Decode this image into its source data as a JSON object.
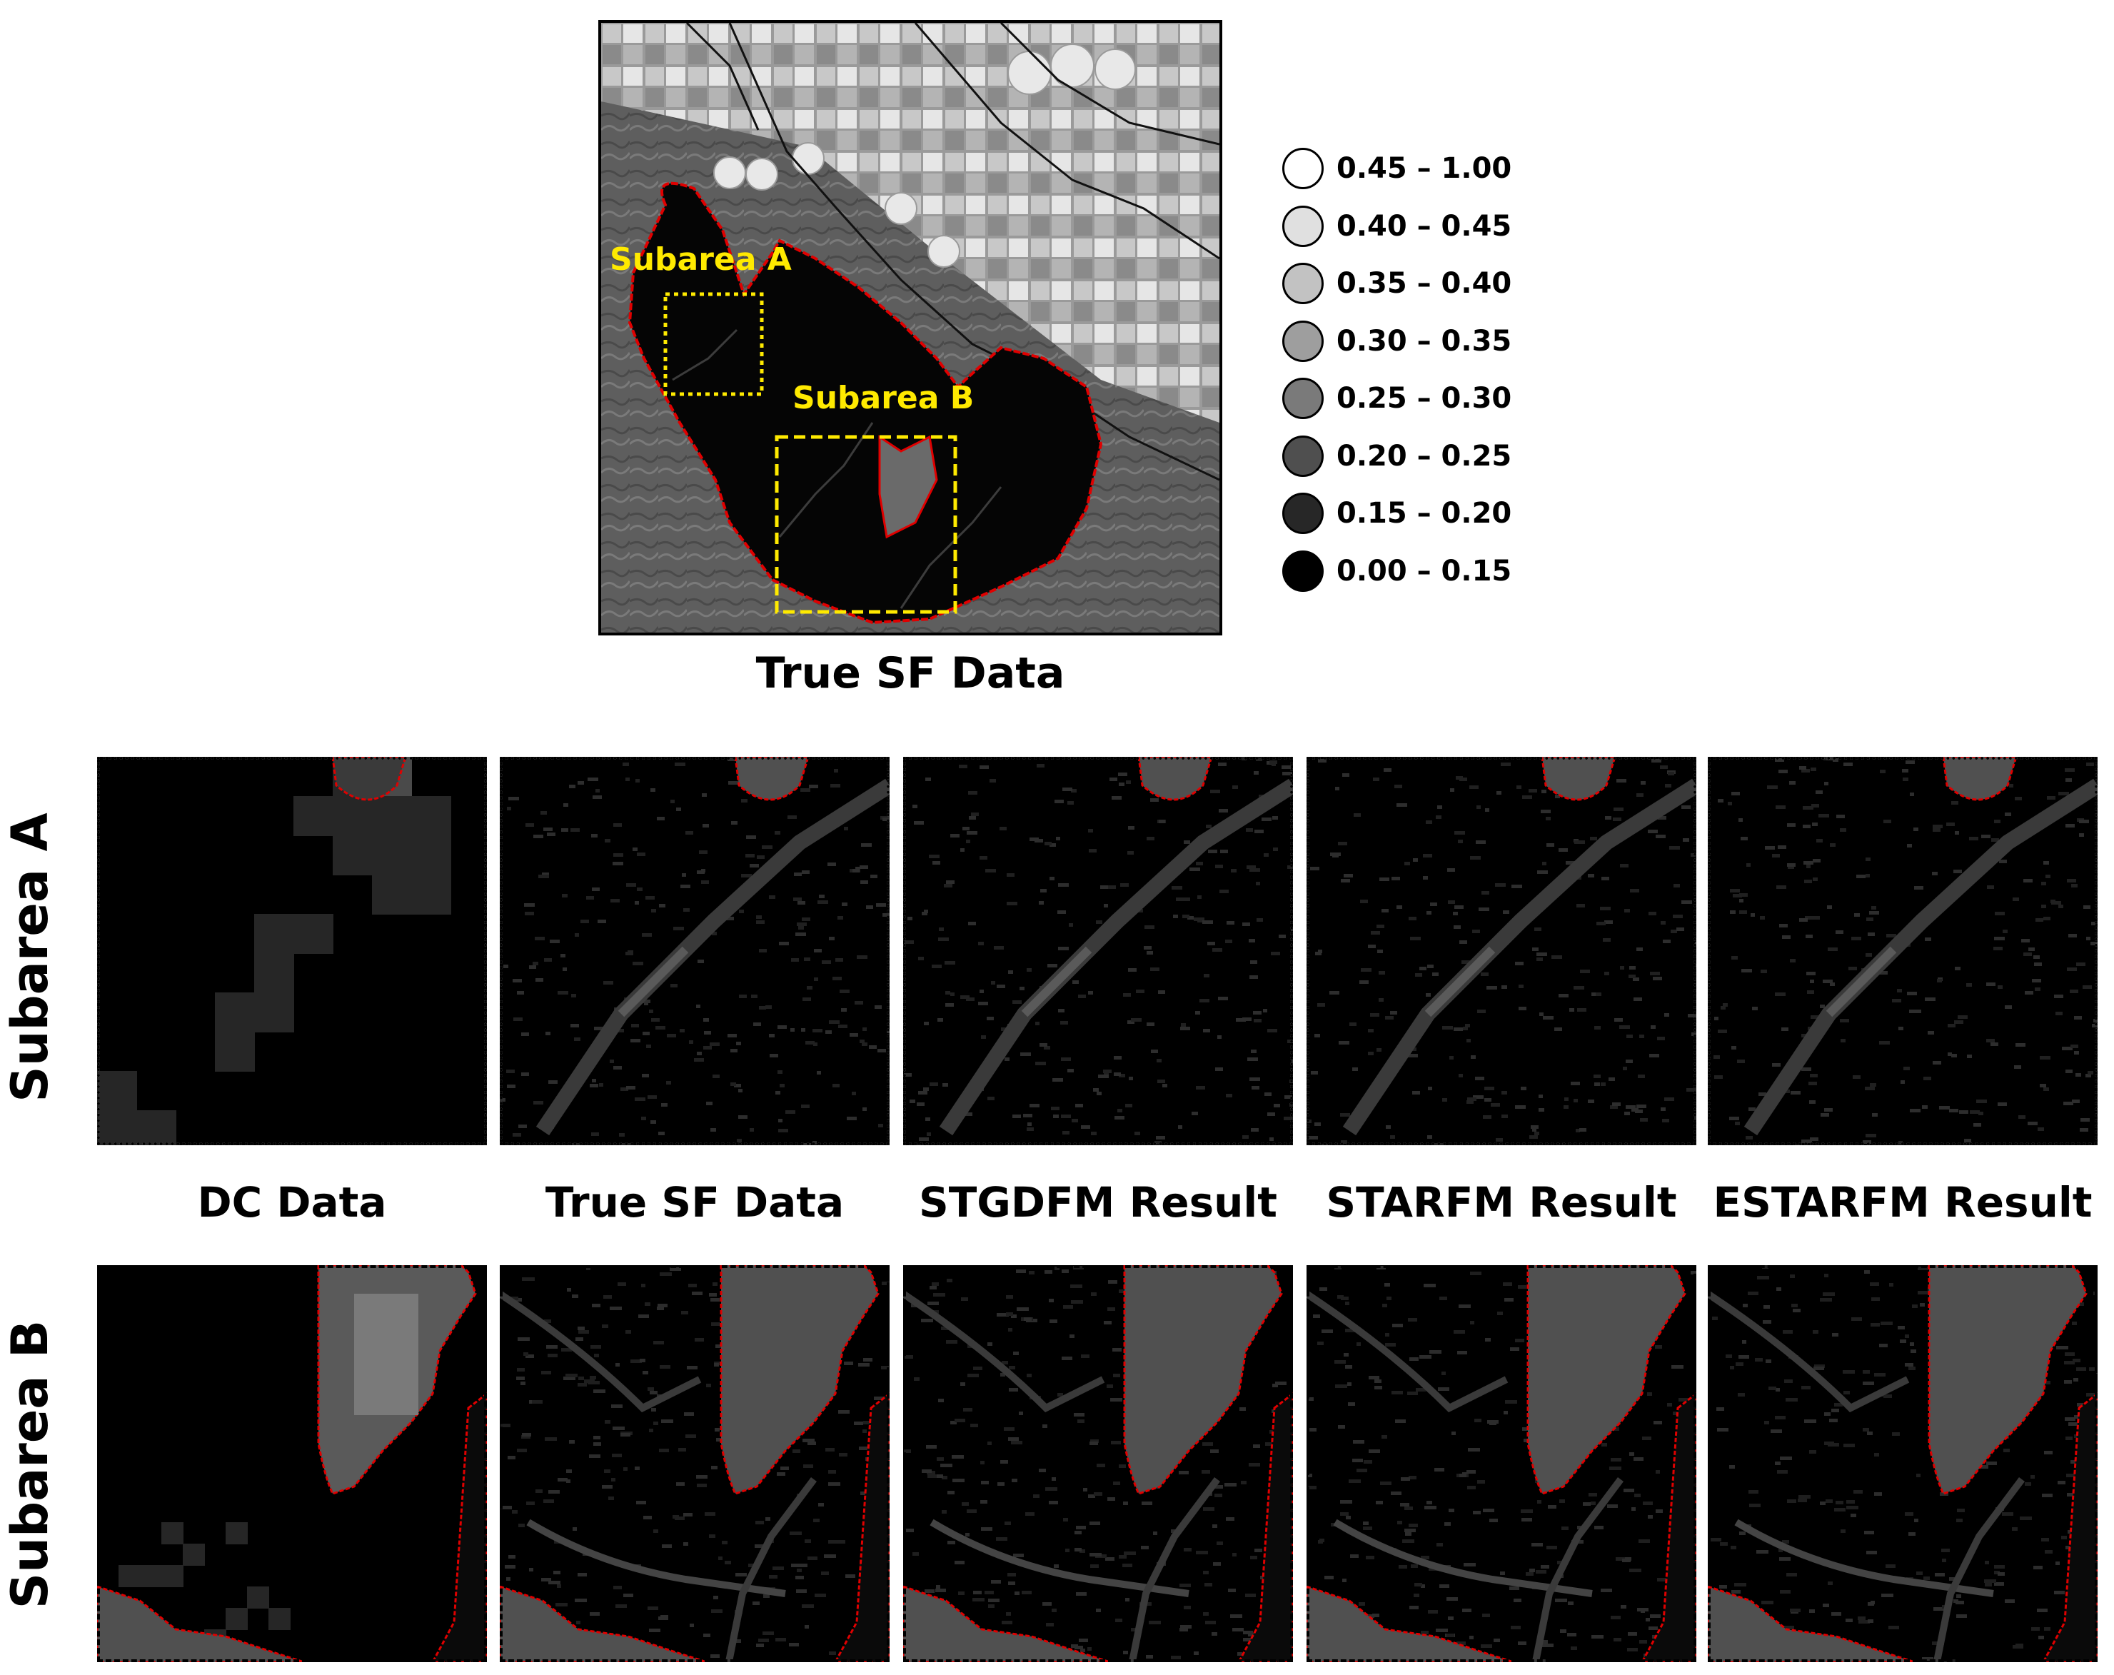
{
  "main_map": {
    "caption": "True SF Data",
    "subarea_a_label": "Subarea A",
    "subarea_b_label": "Subarea B"
  },
  "legend": {
    "items": [
      {
        "label": "0.45 – 1.00",
        "color": "#ffffff"
      },
      {
        "label": "0.40 – 0.45",
        "color": "#e0e0e0"
      },
      {
        "label": "0.35 – 0.40",
        "color": "#c2c2c2"
      },
      {
        "label": "0.30 – 0.35",
        "color": "#9e9e9e"
      },
      {
        "label": "0.25 – 0.30",
        "color": "#7a7a7a"
      },
      {
        "label": "0.20 – 0.25",
        "color": "#4f4f4f"
      },
      {
        "label": "0.15 – 0.20",
        "color": "#272727"
      },
      {
        "label": "0.00 – 0.15",
        "color": "#000000"
      }
    ]
  },
  "rows": {
    "subarea_a": "Subarea A",
    "subarea_b": "Subarea B"
  },
  "columns": [
    "DC Data",
    "True SF Data",
    "STGDFM Result",
    "STARFM Result",
    "ESTARFM Result"
  ],
  "colors": {
    "boundary": "#e00000",
    "highlight": "#ffea00"
  }
}
